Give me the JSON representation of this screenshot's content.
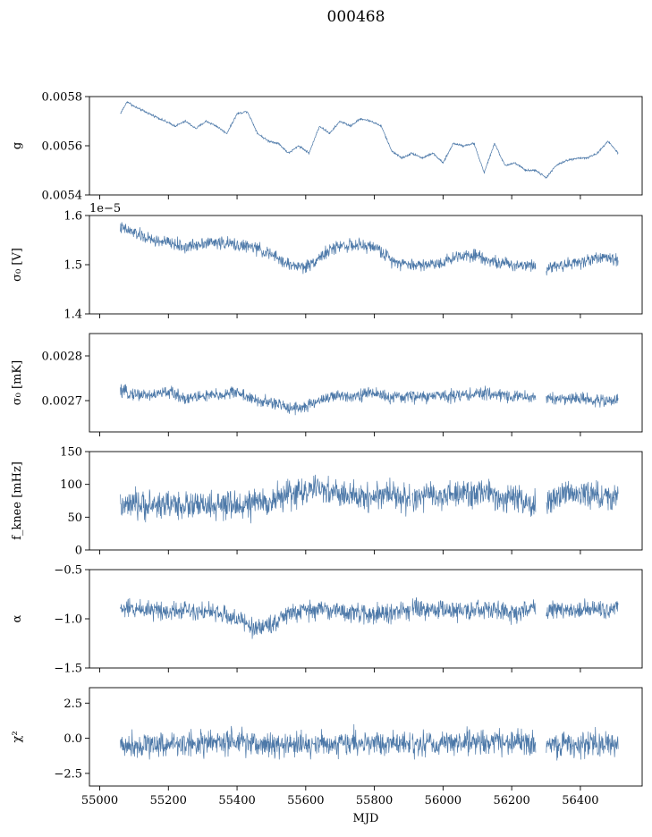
{
  "figure": {
    "title": "000468",
    "color": "#4c78a8"
  },
  "chart_data": [
    {
      "type": "line",
      "ylabel": "g",
      "ylim": [
        0.0054,
        0.0058
      ],
      "yticks": [
        "0.0054",
        "0.0056",
        "0.0058"
      ],
      "ytick_values": [
        0.0054,
        0.0056,
        0.0058
      ],
      "offset_text": "",
      "xlim": [
        54970,
        56580
      ],
      "xticks": [
        55000,
        55200,
        55400,
        55600,
        55800,
        56000,
        56200,
        56400
      ],
      "noise": 4e-06,
      "gaps": [],
      "series": [
        {
          "name": "g",
          "x": [
            55060,
            55080,
            55100,
            55130,
            55160,
            55190,
            55220,
            55250,
            55280,
            55310,
            55340,
            55370,
            55400,
            55430,
            55460,
            55490,
            55520,
            55550,
            55580,
            55610,
            55640,
            55670,
            55700,
            55730,
            55760,
            55790,
            55820,
            55850,
            55880,
            55910,
            55940,
            55970,
            56000,
            56030,
            56060,
            56090,
            56120,
            56150,
            56180,
            56210,
            56240,
            56270,
            56300,
            56330,
            56360,
            56390,
            56420,
            56450,
            56480,
            56510
          ],
          "y": [
            0.00573,
            0.00578,
            0.00576,
            0.00574,
            0.00572,
            0.0057,
            0.00568,
            0.0057,
            0.00567,
            0.0057,
            0.00568,
            0.00565,
            0.00573,
            0.00574,
            0.00565,
            0.00562,
            0.00561,
            0.00557,
            0.0056,
            0.00557,
            0.00568,
            0.00565,
            0.0057,
            0.00568,
            0.00571,
            0.0057,
            0.00568,
            0.00558,
            0.00555,
            0.00557,
            0.00555,
            0.00557,
            0.00553,
            0.00561,
            0.0056,
            0.00561,
            0.00549,
            0.00561,
            0.00552,
            0.00553,
            0.0055,
            0.0055,
            0.00547,
            0.00552,
            0.00554,
            0.00555,
            0.00555,
            0.00557,
            0.00562,
            0.00557
          ]
        }
      ]
    },
    {
      "type": "line",
      "ylabel": "σ₀ [V]",
      "ylim": [
        1.4,
        1.6
      ],
      "yticks": [
        "1.4",
        "1.5",
        "1.6"
      ],
      "ytick_values": [
        1.4,
        1.5,
        1.6
      ],
      "offset_text": "1e−5",
      "xlim": [
        54970,
        56580
      ],
      "xticks": [
        55000,
        55200,
        55400,
        55600,
        55800,
        56000,
        56200,
        56400
      ],
      "noise": 0.012,
      "gaps": [
        [
          56270,
          56300
        ]
      ],
      "series": [
        {
          "name": "sigma0_V",
          "x": [
            55060,
            55100,
            55150,
            55200,
            55250,
            55300,
            55350,
            55400,
            55450,
            55500,
            55550,
            55600,
            55650,
            55700,
            55750,
            55800,
            55850,
            55900,
            55950,
            56000,
            56050,
            56100,
            56150,
            56200,
            56250,
            56300,
            56350,
            56400,
            56450,
            56510
          ],
          "y": [
            1.575,
            1.565,
            1.55,
            1.545,
            1.535,
            1.545,
            1.545,
            1.54,
            1.535,
            1.52,
            1.5,
            1.495,
            1.52,
            1.54,
            1.538,
            1.537,
            1.51,
            1.5,
            1.5,
            1.505,
            1.52,
            1.52,
            1.505,
            1.5,
            1.5,
            1.495,
            1.5,
            1.505,
            1.515,
            1.51
          ]
        }
      ]
    },
    {
      "type": "line",
      "ylabel": "σ₀ [mK]",
      "ylim": [
        0.00263,
        0.00285
      ],
      "yticks": [
        "0.0027",
        "0.0028"
      ],
      "ytick_values": [
        0.0027,
        0.0028
      ],
      "offset_text": "",
      "xlim": [
        54970,
        56580
      ],
      "xticks": [
        55000,
        55200,
        55400,
        55600,
        55800,
        56000,
        56200,
        56400
      ],
      "noise": 1.3e-05,
      "gaps": [
        [
          56270,
          56300
        ]
      ],
      "series": [
        {
          "name": "sigma0_mK",
          "x": [
            55060,
            55100,
            55150,
            55200,
            55250,
            55300,
            55350,
            55400,
            55450,
            55500,
            55550,
            55600,
            55650,
            55700,
            55750,
            55800,
            55850,
            55900,
            55950,
            56000,
            56050,
            56100,
            56150,
            56200,
            56250,
            56300,
            56350,
            56400,
            56450,
            56510
          ],
          "y": [
            0.00272,
            0.002715,
            0.002712,
            0.00272,
            0.002705,
            0.00271,
            0.002712,
            0.00272,
            0.0027,
            0.002695,
            0.002685,
            0.002685,
            0.002705,
            0.00271,
            0.002712,
            0.002718,
            0.002705,
            0.00271,
            0.002708,
            0.002712,
            0.002712,
            0.002715,
            0.002715,
            0.00271,
            0.002708,
            0.002705,
            0.002705,
            0.002705,
            0.0027,
            0.0027
          ]
        }
      ]
    },
    {
      "type": "line",
      "ylabel": "f_knee [mHz]",
      "ylim": [
        0,
        150
      ],
      "yticks": [
        "0",
        "50",
        "100",
        "150"
      ],
      "ytick_values": [
        0,
        50,
        100,
        150
      ],
      "offset_text": "",
      "xlim": [
        54970,
        56580
      ],
      "xticks": [
        55000,
        55200,
        55400,
        55600,
        55800,
        56000,
        56200,
        56400
      ],
      "noise": 20,
      "gaps": [
        [
          55905,
          55910
        ],
        [
          56270,
          56300
        ]
      ],
      "series": [
        {
          "name": "f_knee",
          "x": [
            55060,
            55100,
            55150,
            55200,
            55250,
            55300,
            55350,
            55400,
            55450,
            55500,
            55550,
            55600,
            55650,
            55700,
            55750,
            55800,
            55850,
            55900,
            55950,
            56000,
            56050,
            56100,
            56150,
            56200,
            56250,
            56300,
            56350,
            56400,
            56450,
            56510
          ],
          "y": [
            65,
            68,
            68,
            70,
            68,
            67,
            66,
            68,
            70,
            75,
            85,
            90,
            92,
            85,
            80,
            82,
            88,
            75,
            82,
            82,
            84,
            88,
            82,
            78,
            68,
            70,
            85,
            88,
            82,
            80
          ]
        }
      ]
    },
    {
      "type": "line",
      "ylabel": "α",
      "ylim": [
        -1.5,
        -0.5
      ],
      "yticks": [
        "−1.5",
        "−1.0",
        "−0.5"
      ],
      "ytick_values": [
        -1.5,
        -1.0,
        -0.5
      ],
      "offset_text": "",
      "xlim": [
        54970,
        56580
      ],
      "xticks": [
        55000,
        55200,
        55400,
        55600,
        55800,
        56000,
        56200,
        56400
      ],
      "noise": 0.09,
      "gaps": [
        [
          55905,
          55910
        ],
        [
          56270,
          56300
        ]
      ],
      "series": [
        {
          "name": "alpha",
          "x": [
            55060,
            55100,
            55150,
            55200,
            55250,
            55300,
            55350,
            55400,
            55450,
            55500,
            55550,
            55600,
            55650,
            55700,
            55750,
            55800,
            55850,
            55900,
            55950,
            56000,
            56050,
            56100,
            56150,
            56200,
            56250,
            56300,
            56350,
            56400,
            56450,
            56510
          ],
          "y": [
            -0.9,
            -0.9,
            -0.9,
            -0.92,
            -0.9,
            -0.92,
            -0.95,
            -1.0,
            -1.1,
            -1.05,
            -0.95,
            -0.92,
            -0.9,
            -0.92,
            -0.95,
            -0.95,
            -0.95,
            -0.9,
            -0.92,
            -0.9,
            -0.92,
            -0.92,
            -0.9,
            -0.95,
            -0.9,
            -0.9,
            -0.9,
            -0.92,
            -0.9,
            -0.9
          ]
        }
      ]
    },
    {
      "type": "line",
      "ylabel": "χ²",
      "ylim": [
        -3.4,
        3.6
      ],
      "yticks": [
        "−2.5",
        "0.0",
        "2.5"
      ],
      "ytick_values": [
        -2.5,
        0.0,
        2.5
      ],
      "offset_text": "",
      "xlabel": "MJD",
      "xlim": [
        54970,
        56580
      ],
      "xticks": [
        55000,
        55200,
        55400,
        55600,
        55800,
        56000,
        56200,
        56400
      ],
      "xtick_labels": [
        "55000",
        "55200",
        "55400",
        "55600",
        "55800",
        "56000",
        "56200",
        "56400"
      ],
      "noise": 0.85,
      "gaps": [
        [
          55905,
          55910
        ],
        [
          56270,
          56300
        ]
      ],
      "series": [
        {
          "name": "chi2",
          "x": [
            55060,
            55150,
            55250,
            55350,
            55450,
            55550,
            55650,
            55750,
            55850,
            55950,
            56050,
            56150,
            56250,
            56350,
            56450,
            56510
          ],
          "y": [
            -0.5,
            -0.4,
            -0.4,
            -0.3,
            -0.4,
            -0.5,
            -0.4,
            -0.3,
            -0.4,
            -0.4,
            -0.3,
            -0.3,
            -0.4,
            -0.5,
            -0.4,
            -0.4
          ]
        }
      ]
    }
  ]
}
